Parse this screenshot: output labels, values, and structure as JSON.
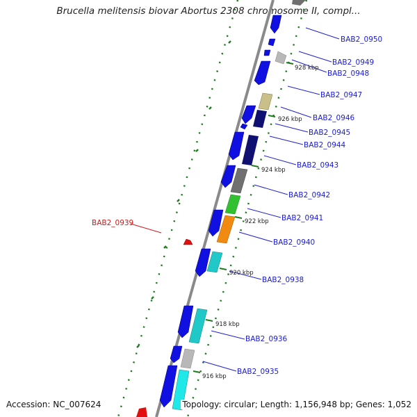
{
  "title": "Brucella melitensis biovar Abortus 2308 chromosome II, compl...",
  "accession": "Accession: NC_007624",
  "summary": "Topology: circular; Length: 1,156,948 bp; Genes: 1,052",
  "colors": {
    "backbone": "#8a8a8a",
    "blue": "#1010e0",
    "cyan": "#20c8c8",
    "grey": "#b8b8b8",
    "khaki": "#c8c088",
    "navy": "#101070",
    "darkgrey": "#707070",
    "green": "#30c030",
    "orange": "#f08a10",
    "red": "#e01010",
    "tick": "#1e7a1e",
    "label": "#1a1ad6",
    "label_highlight": "#d01a1a"
  },
  "gene_labels": [
    {
      "id": "g0950",
      "text": "BAB2_0950",
      "highlight": false
    },
    {
      "id": "g0949",
      "text": "BAB2_0949",
      "highlight": false
    },
    {
      "id": "g0948",
      "text": "BAB2_0948",
      "highlight": false
    },
    {
      "id": "g0947",
      "text": "BAB2_0947",
      "highlight": false
    },
    {
      "id": "g0946",
      "text": "BAB2_0946",
      "highlight": false
    },
    {
      "id": "g0945",
      "text": "BAB2_0945",
      "highlight": false
    },
    {
      "id": "g0944",
      "text": "BAB2_0944",
      "highlight": false
    },
    {
      "id": "g0943",
      "text": "BAB2_0943",
      "highlight": false
    },
    {
      "id": "g0942",
      "text": "BAB2_0942",
      "highlight": false
    },
    {
      "id": "g0941",
      "text": "BAB2_0941",
      "highlight": false
    },
    {
      "id": "g0940",
      "text": "BAB2_0940",
      "highlight": false
    },
    {
      "id": "g0939",
      "text": "BAB2_0939",
      "highlight": true
    },
    {
      "id": "g0938",
      "text": "BAB2_0938",
      "highlight": false
    },
    {
      "id": "g0936",
      "text": "BAB2_0936",
      "highlight": false
    },
    {
      "id": "g0935",
      "text": "BAB2_0935",
      "highlight": false
    }
  ],
  "position_labels": [
    "928 kbp",
    "926 kbp",
    "924 kbp",
    "922 kbp",
    "920 kbp",
    "918 kbp",
    "916 kbp"
  ]
}
